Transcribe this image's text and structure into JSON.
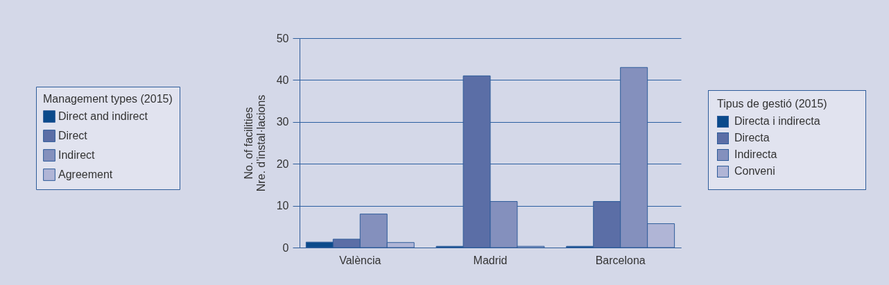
{
  "chart_data": {
    "type": "bar",
    "categories": [
      "València",
      "Madrid",
      "Barcelona"
    ],
    "ylabel": "No. of facilities\nNre. d’instal·lacions",
    "legend_title": "Management types (2015)",
    "series": [
      {
        "name": "Direct and indirect",
        "color": "#0b4a8b",
        "values": [
          1.3,
          0.3,
          0.3
        ]
      },
      {
        "name": "Direct",
        "color": "#5b6ea6",
        "values": [
          2,
          41,
          11
        ]
      },
      {
        "name": "Indirect",
        "color": "#8490bd",
        "values": [
          8,
          11,
          43
        ]
      },
      {
        "name": "Agreement",
        "color": "#b0b5d6",
        "values": [
          1.2,
          0.3,
          5.7
        ]
      }
    ],
    "ylim": [
      0,
      50
    ],
    "yticks": [
      0,
      10,
      20,
      30,
      40,
      50
    ],
    "grid": "y",
    "legend": "left",
    "annotations": [
      "Tipus de gestió (2015)",
      "Directa i indirecta",
      "Directa",
      "Indirecta",
      "Conveni"
    ]
  }
}
